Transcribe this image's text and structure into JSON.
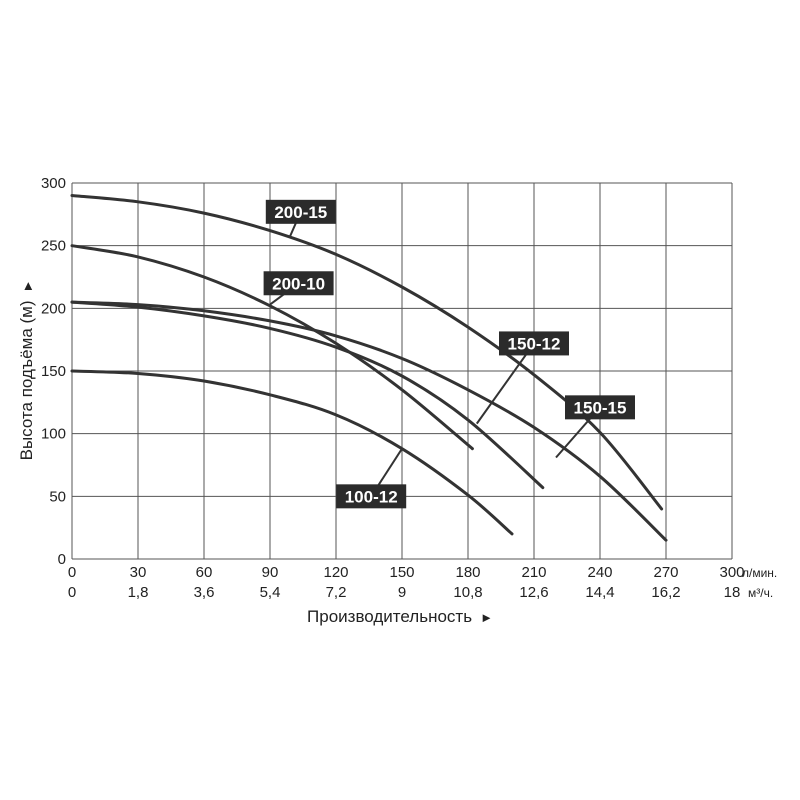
{
  "chart_data": {
    "type": "line",
    "title": "",
    "xlabel": "Производительность",
    "xlabel_arrow": "►",
    "ylabel": "Высота подъёма (м)",
    "ylabel_arrow": "►",
    "x_unit": "л/мин.",
    "x2_unit": "м³/ч.",
    "xlim": [
      0,
      300
    ],
    "ylim": [
      0,
      300
    ],
    "x_ticks": [
      "0",
      "30",
      "60",
      "90",
      "120",
      "150",
      "180",
      "210",
      "240",
      "270",
      "300"
    ],
    "x2_ticks": [
      "0",
      "1,8",
      "3,6",
      "5,4",
      "7,2",
      "9",
      "10,8",
      "12,6",
      "14,4",
      "16,2",
      "18"
    ],
    "y_ticks": [
      "0",
      "50",
      "100",
      "150",
      "200",
      "250",
      "300"
    ],
    "grid": true,
    "series": [
      {
        "name": "200-15",
        "x": [
          0,
          30,
          60,
          90,
          120,
          150,
          180,
          210,
          240,
          268
        ],
        "y": [
          290,
          285,
          276,
          262,
          243,
          217,
          185,
          147,
          101,
          40
        ]
      },
      {
        "name": "200-10",
        "x": [
          0,
          30,
          60,
          90,
          120,
          150,
          182
        ],
        "y": [
          250,
          241,
          225,
          202,
          172,
          135,
          88
        ]
      },
      {
        "name": "150-12",
        "x": [
          0,
          30,
          60,
          90,
          120,
          150,
          180,
          214
        ],
        "y": [
          205,
          201,
          194,
          184,
          169,
          146,
          111,
          57
        ]
      },
      {
        "name": "150-15",
        "x": [
          0,
          30,
          60,
          90,
          120,
          150,
          180,
          210,
          240,
          270
        ],
        "y": [
          205,
          203,
          198,
          190,
          178,
          160,
          135,
          105,
          66,
          15
        ]
      },
      {
        "name": "100-12",
        "x": [
          0,
          30,
          60,
          90,
          120,
          150,
          180,
          200
        ],
        "y": [
          150,
          148,
          142,
          131,
          115,
          88,
          51,
          20
        ]
      }
    ],
    "labels": [
      {
        "series": "200-15",
        "box_x": 104,
        "box_y": 277,
        "point_x": 99,
        "point_y": 257
      },
      {
        "series": "200-10",
        "box_x": 103,
        "box_y": 220,
        "point_x": 90,
        "point_y": 203
      },
      {
        "series": "150-12",
        "box_x": 210,
        "box_y": 172,
        "point_x": 184,
        "point_y": 108
      },
      {
        "series": "150-15",
        "box_x": 240,
        "box_y": 121,
        "point_x": 220,
        "point_y": 81
      },
      {
        "series": "100-12",
        "box_x": 136,
        "box_y": 50,
        "point_x": 150,
        "point_y": 88
      }
    ]
  }
}
